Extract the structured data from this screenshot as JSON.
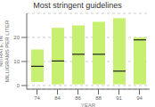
{
  "chart_data": {
    "type": "bar",
    "title": "Most stringent guidelines",
    "xlabel": "YEAR",
    "ylabel": "NITRATE, IN\nMILLIGRAMS PER LITER",
    "categories": [
      "74",
      "84",
      "86",
      "88",
      "91",
      "94"
    ],
    "bottoms": [
      1.5,
      0.5,
      0.5,
      0.5,
      0.5,
      0.5
    ],
    "tops": [
      15.0,
      24.0,
      25.0,
      26.5,
      28.0,
      20.0
    ],
    "medians": [
      8.0,
      10.2,
      13.0,
      13.0,
      6.0,
      19.0
    ],
    "color": "#c8f070",
    "ylim": [
      -1.5,
      30
    ],
    "yticks": [
      0,
      10,
      20
    ],
    "grid": true
  }
}
